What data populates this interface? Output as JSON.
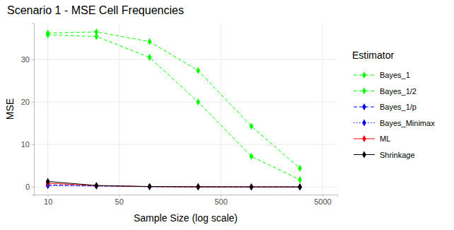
{
  "chart_data": {
    "type": "line",
    "title": "Scenario 1 - MSE Cell Frequencies",
    "x_label": "Sample Size (log scale)",
    "y_label": "MSE",
    "legend_title": "Estimator",
    "x": [
      10,
      30,
      100,
      300,
      1000,
      3000
    ],
    "series": [
      {
        "name": "Bayes_1",
        "color": "#00FF00",
        "line_style": "dashed",
        "marker": "diamond",
        "values": [
          36.2,
          36.5,
          34.2,
          27.4,
          14.3,
          4.4
        ]
      },
      {
        "name": "Bayes_1/2",
        "color": "#00FF00",
        "line_style": "dashed",
        "marker": "diamond",
        "values": [
          35.8,
          35.4,
          30.5,
          20.0,
          7.2,
          1.7
        ]
      },
      {
        "name": "Bayes_1/p",
        "color": "#0000FF",
        "line_style": "dashed",
        "marker": "diamond",
        "values": [
          0.5,
          0.25,
          0.08,
          0.03,
          0.01,
          0.003
        ]
      },
      {
        "name": "Bayes_Minimax",
        "color": "#0000FF",
        "line_style": "dotted",
        "marker": "diamond",
        "values": [
          0.3,
          0.2,
          0.07,
          0.03,
          0.01,
          0.003
        ]
      },
      {
        "name": "ML",
        "color": "#FF0000",
        "line_style": "solid",
        "marker": "diamond",
        "values": [
          0.9,
          0.3,
          0.09,
          0.03,
          0.01,
          0.003
        ]
      },
      {
        "name": "Shrinkage",
        "color": "#000000",
        "line_style": "solid",
        "marker": "diamond",
        "values": [
          1.3,
          0.35,
          0.1,
          0.03,
          0.01,
          0.003
        ]
      }
    ],
    "xlim": [
      7.3,
      7000
    ],
    "xticks": [
      10,
      50,
      500,
      5000
    ],
    "ylim": [
      -1.8,
      38.5
    ],
    "yticks": [
      0,
      10,
      20,
      30
    ],
    "log": "x",
    "grid": true,
    "legend": "right"
  }
}
